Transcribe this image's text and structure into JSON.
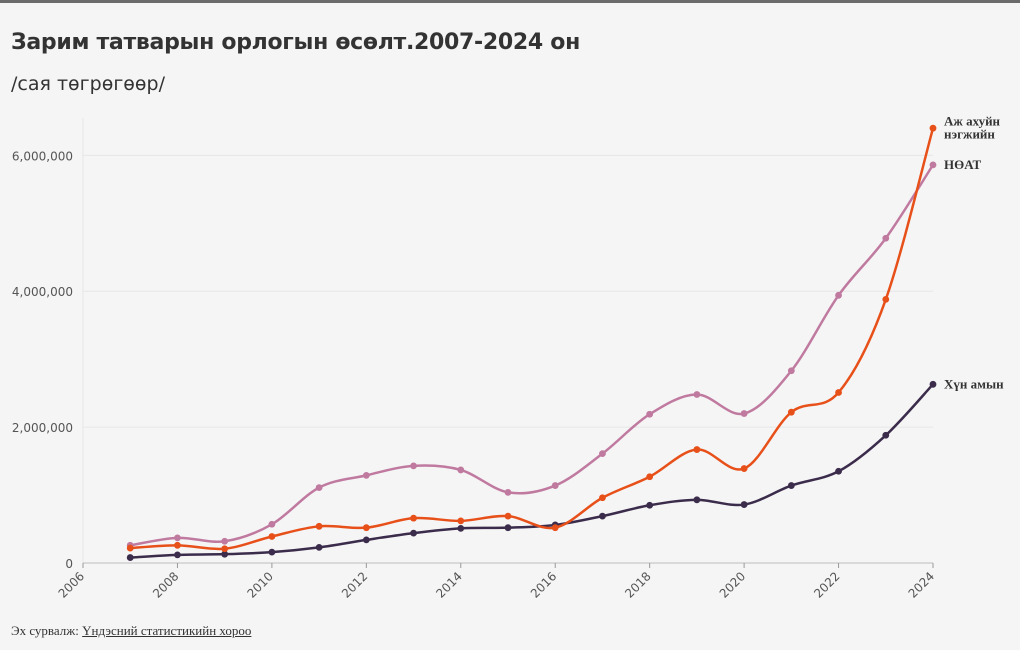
{
  "header": {
    "title": "Зарим татварын орлогын өсөлт.2007-2024 он",
    "subtitle": "/сая төгрөгөөр/"
  },
  "footer": {
    "source_prefix": "Эх сурвалж:",
    "source_link": "Үндэсний статистикийн хороо"
  },
  "colors": {
    "background": "#f5f5f5",
    "grid": "#e6e6e6",
    "series_orange": "#e8501a",
    "series_pink": "#c07aa0",
    "series_dark": "#3b2c4c"
  },
  "chart_data": {
    "type": "line",
    "title": "Зарим татварын орлогын өсөлт.2007-2024 он",
    "subtitle": "/сая төгрөгөөр/",
    "xlabel": "",
    "ylabel": "",
    "xlim": [
      2006,
      2024
    ],
    "ylim": [
      0,
      6550000
    ],
    "x_ticks": [
      "2006",
      "2008",
      "2010",
      "2012",
      "2014",
      "2016",
      "2018",
      "2020",
      "2022",
      "2024"
    ],
    "y_ticks": [
      {
        "value": 0,
        "label": "0"
      },
      {
        "value": 2000000,
        "label": "2,000,000"
      },
      {
        "value": 4000000,
        "label": "4,000,000"
      },
      {
        "value": 6000000,
        "label": "6,000,000"
      }
    ],
    "grid": true,
    "legend": "inline labels at line ends (right)",
    "x": [
      2007,
      2008,
      2009,
      2010,
      2011,
      2012,
      2013,
      2014,
      2015,
      2016,
      2017,
      2018,
      2019,
      2020,
      2021,
      2022,
      2023,
      2024
    ],
    "series": [
      {
        "name": "Аж ахуйн нэгжийн",
        "label_lines": [
          "Аж ахуйн",
          "нэгжийн"
        ],
        "color": "#e8501a",
        "values": [
          220000,
          260000,
          210000,
          390000,
          540000,
          520000,
          660000,
          620000,
          690000,
          520000,
          960000,
          1270000,
          1670000,
          1390000,
          2220000,
          2510000,
          3880000,
          6400000
        ]
      },
      {
        "name": "НӨАТ",
        "label_lines": [
          "НӨАТ"
        ],
        "color": "#c07aa0",
        "values": [
          260000,
          370000,
          320000,
          570000,
          1110000,
          1290000,
          1430000,
          1370000,
          1040000,
          1140000,
          1610000,
          2190000,
          2480000,
          2200000,
          2830000,
          3940000,
          4780000,
          5860000
        ]
      },
      {
        "name": "Хүн амын",
        "label_lines": [
          "Хүн амын"
        ],
        "color": "#3b2c4c",
        "values": [
          80000,
          120000,
          130000,
          160000,
          230000,
          340000,
          440000,
          510000,
          520000,
          560000,
          690000,
          850000,
          930000,
          860000,
          1140000,
          1350000,
          1880000,
          2630000
        ]
      }
    ]
  }
}
